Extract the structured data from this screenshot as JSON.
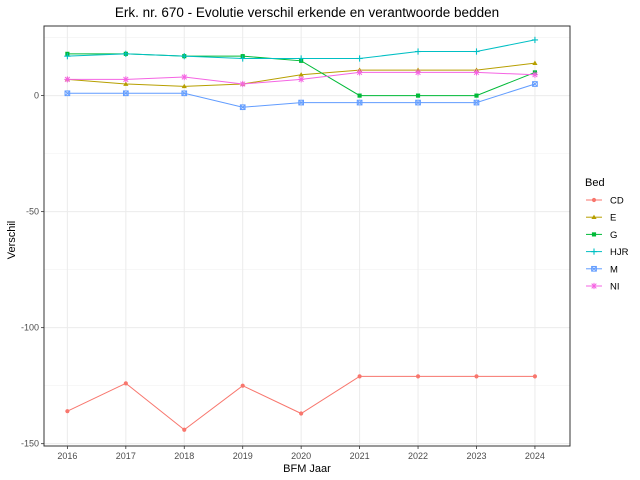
{
  "chart_data": {
    "type": "line",
    "title": "Erk. nr. 670 - Evolutie verschil erkende en verantwoorde bedden",
    "xlabel": "BFM Jaar",
    "ylabel": "Verschil",
    "x": [
      2016,
      2017,
      2018,
      2019,
      2020,
      2021,
      2022,
      2023,
      2024
    ],
    "xlim": [
      2015.6,
      2024.6
    ],
    "ylim": [
      -151,
      30
    ],
    "yticks": [
      0,
      -50,
      -100,
      -150
    ],
    "grid": true,
    "legend_title": "Bed",
    "legend_position": "right",
    "series": [
      {
        "name": "CD",
        "color": "#F8766D",
        "marker": "circle",
        "values": [
          -136,
          -124,
          -144,
          -125,
          -137,
          -121,
          -121,
          -121,
          -121
        ]
      },
      {
        "name": "E",
        "color": "#B79F00",
        "marker": "triangle",
        "values": [
          7,
          5,
          4,
          5,
          9,
          11,
          11,
          11,
          14
        ]
      },
      {
        "name": "G",
        "color": "#00BA38",
        "marker": "square",
        "values": [
          18,
          18,
          17,
          17,
          15,
          0,
          0,
          0,
          10
        ]
      },
      {
        "name": "HJR",
        "color": "#00BFC4",
        "marker": "plus",
        "values": [
          17,
          18,
          17,
          16,
          16,
          16,
          19,
          19,
          24
        ]
      },
      {
        "name": "M",
        "color": "#619CFF",
        "marker": "squarex",
        "values": [
          1,
          1,
          1,
          -5,
          -3,
          -3,
          -3,
          -3,
          5
        ]
      },
      {
        "name": "NI",
        "color": "#F564E3",
        "marker": "asterisk",
        "values": [
          7,
          7,
          8,
          5,
          7,
          10,
          10,
          10,
          9
        ]
      }
    ]
  }
}
